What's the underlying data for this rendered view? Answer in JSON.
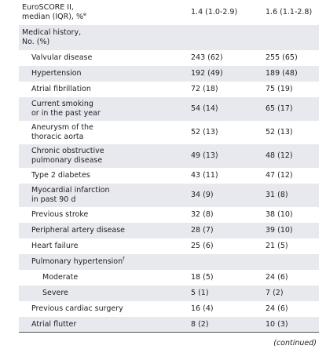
{
  "table": {
    "rows": [
      {
        "label": "EuroSCORE II,\nmedian (IQR), %",
        "note": "e",
        "values": [
          "1.4 (1.0-2.9)",
          "1.6 (1.1-2.8)"
        ]
      },
      {
        "label": "Medical history,\nNo. (%)"
      },
      {
        "label": "Valvular disease",
        "values": [
          "243 (62)",
          "255 (65)"
        ]
      },
      {
        "label": "Hypertension",
        "values": [
          "192 (49)",
          "189 (48)"
        ]
      },
      {
        "label": "Atrial fibrillation",
        "values": [
          "72 (18)",
          "75 (19)"
        ]
      },
      {
        "label": "Current smoking\nor in the past year",
        "values": [
          "54 (14)",
          "65 (17)"
        ]
      },
      {
        "label": "Aneurysm of the\nthoracic aorta",
        "values": [
          "52 (13)",
          "52 (13)"
        ]
      },
      {
        "label": "Chronic obstructive\npulmonary disease",
        "values": [
          "49 (13)",
          "48 (12)"
        ]
      },
      {
        "label": "Type 2 diabetes",
        "values": [
          "43 (11)",
          "47 (12)"
        ]
      },
      {
        "label": "Myocardial infarction\nin past 90 d",
        "values": [
          "34 (9)",
          "31 (8)"
        ]
      },
      {
        "label": "Previous stroke",
        "values": [
          "32 (8)",
          "38 (10)"
        ]
      },
      {
        "label": "Peripheral artery disease",
        "values": [
          "28 (7)",
          "39 (10)"
        ]
      },
      {
        "label": "Heart failure",
        "values": [
          "25 (6)",
          "21 (5)"
        ]
      },
      {
        "label": "Pulmonary hypertension",
        "note": "f"
      },
      {
        "label": "Moderate",
        "values": [
          "18 (5)",
          "24 (6)"
        ]
      },
      {
        "label": "Severe",
        "values": [
          "5 (1)",
          "7 (2)"
        ]
      },
      {
        "label": "Previous cardiac surgery",
        "values": [
          "16 (4)",
          "24 (6)"
        ]
      },
      {
        "label": "Atrial flutter",
        "values": [
          "8 (2)",
          "10 (3)"
        ]
      }
    ]
  },
  "footer": "(continued)"
}
